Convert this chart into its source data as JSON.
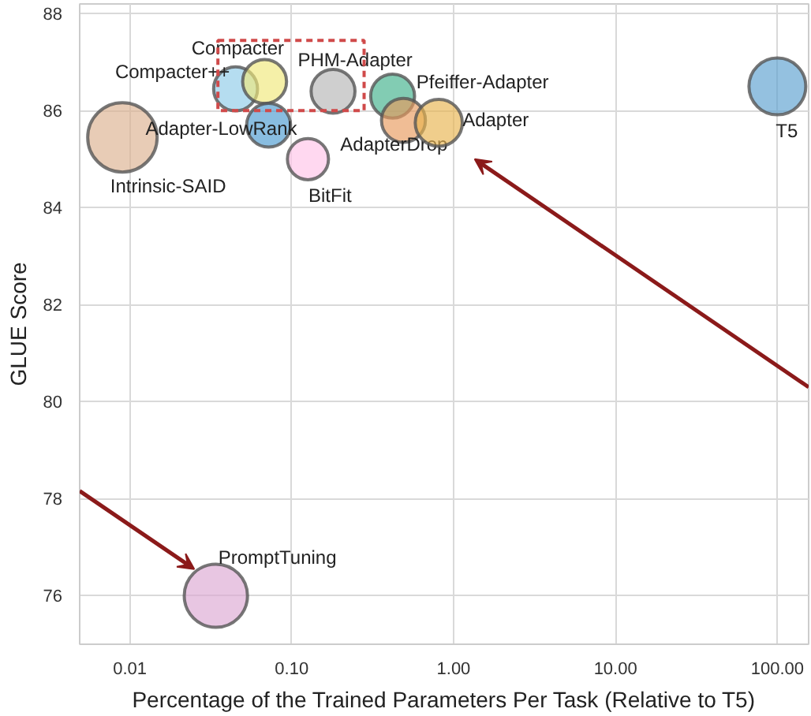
{
  "chart_data": {
    "type": "bubble",
    "xlabel": "Percentage of the Trained Parameters Per Task (Relative to T5)",
    "ylabel": "GLUE Score",
    "log": "x",
    "grid": true,
    "xlim": [
      0.0049,
      156
    ],
    "ylim": [
      75,
      88.2
    ],
    "xticks": [
      {
        "value": 0.01,
        "label": "0.01"
      },
      {
        "value": 0.1,
        "label": "0.10"
      },
      {
        "value": 1,
        "label": "1.00"
      },
      {
        "value": 10,
        "label": "10.00"
      },
      {
        "value": 100,
        "label": "100.00"
      }
    ],
    "yticks": [
      76,
      78,
      80,
      82,
      84,
      86,
      88
    ],
    "series": [
      {
        "name": "Intrinsic-SAID",
        "color": "#dcb08f",
        "x": [
          0.009
        ],
        "values": [
          85.45
        ],
        "sizes": [
          1
        ]
      },
      {
        "name": "Compacter++",
        "color": "#8ecbe8",
        "x": [
          0.045
        ],
        "values": [
          86.45
        ],
        "sizes": [
          0.4
        ]
      },
      {
        "name": "Compacter",
        "color": "#f0e87a",
        "x": [
          0.068
        ],
        "values": [
          86.6
        ],
        "sizes": [
          0.4
        ]
      },
      {
        "name": "Adapter-LowRank",
        "color": "#4a9ad0",
        "x": [
          0.072
        ],
        "values": [
          85.7
        ],
        "sizes": [
          0.4
        ]
      },
      {
        "name": "PHM-Adapter",
        "color": "#b5b5b5",
        "x": [
          0.18
        ],
        "values": [
          86.4
        ],
        "sizes": [
          0.4
        ]
      },
      {
        "name": "BitFit",
        "color": "#ffc3e8",
        "x": [
          0.126
        ],
        "values": [
          85.0
        ],
        "sizes": [
          0.35
        ]
      },
      {
        "name": "Pfeiffer-Adapter",
        "color": "#3fb08a",
        "x": [
          0.42
        ],
        "values": [
          86.3
        ],
        "sizes": [
          0.4
        ]
      },
      {
        "name": "AdapterDrop",
        "color": "#e89a5c",
        "x": [
          0.49
        ],
        "values": [
          85.8
        ],
        "sizes": [
          0.4
        ]
      },
      {
        "name": "Adapter",
        "color": "#e8b44f",
        "x": [
          0.81
        ],
        "values": [
          85.75
        ],
        "sizes": [
          0.46
        ]
      },
      {
        "name": "T5",
        "color": "#5b9fd0",
        "x": [
          100
        ],
        "values": [
          86.5
        ],
        "sizes": [
          0.67
        ]
      },
      {
        "name": "PromptTuning",
        "color": "#dca8d3",
        "x": [
          0.034
        ],
        "values": [
          76.0
        ],
        "sizes": [
          0.83
        ]
      }
    ]
  }
}
